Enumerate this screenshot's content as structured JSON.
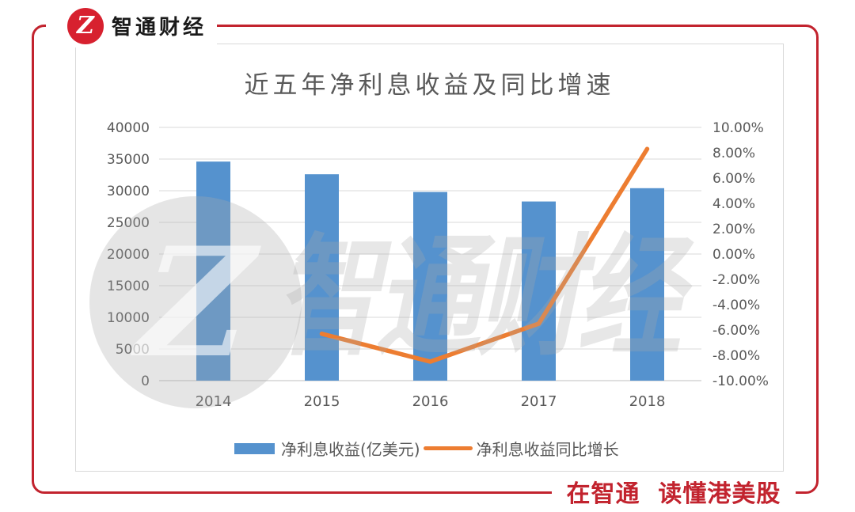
{
  "brand": {
    "name": "智通财经",
    "logo_letter": "Z",
    "slogan": "在智通  读懂港美股",
    "red": "#c2232e"
  },
  "watermark": {
    "text": "智通财经"
  },
  "chart_data": {
    "type": "bar+line",
    "title": "近五年净利息收益及同比增速",
    "categories": [
      "2014",
      "2015",
      "2016",
      "2017",
      "2018"
    ],
    "series": [
      {
        "name": "净利息收益(亿美元)",
        "type": "bar",
        "axis": "left",
        "color": "#5592ce",
        "values": [
          34600,
          32600,
          29800,
          28300,
          30400
        ]
      },
      {
        "name": "净利息收益同比增长",
        "type": "line",
        "axis": "right",
        "color": "#ed7d31",
        "values": [
          null,
          -6.3,
          -8.5,
          -5.5,
          8.3
        ]
      }
    ],
    "left_axis": {
      "min": 0,
      "max": 40000,
      "ticks": [
        "40000",
        "35000",
        "30000",
        "25000",
        "20000",
        "15000",
        "10000",
        "5000",
        "0"
      ]
    },
    "right_axis": {
      "min": -10,
      "max": 10,
      "ticks": [
        "10.00%",
        "8.00%",
        "6.00%",
        "4.00%",
        "2.00%",
        "0.00%",
        "-2.00%",
        "-4.00%",
        "-6.00%",
        "-8.00%",
        "-10.00%"
      ]
    },
    "grid": true,
    "legend_position": "bottom",
    "gridline_color": "#d9d9d9",
    "baseline_color": "#bfbfbf",
    "text_color": "#595959"
  }
}
